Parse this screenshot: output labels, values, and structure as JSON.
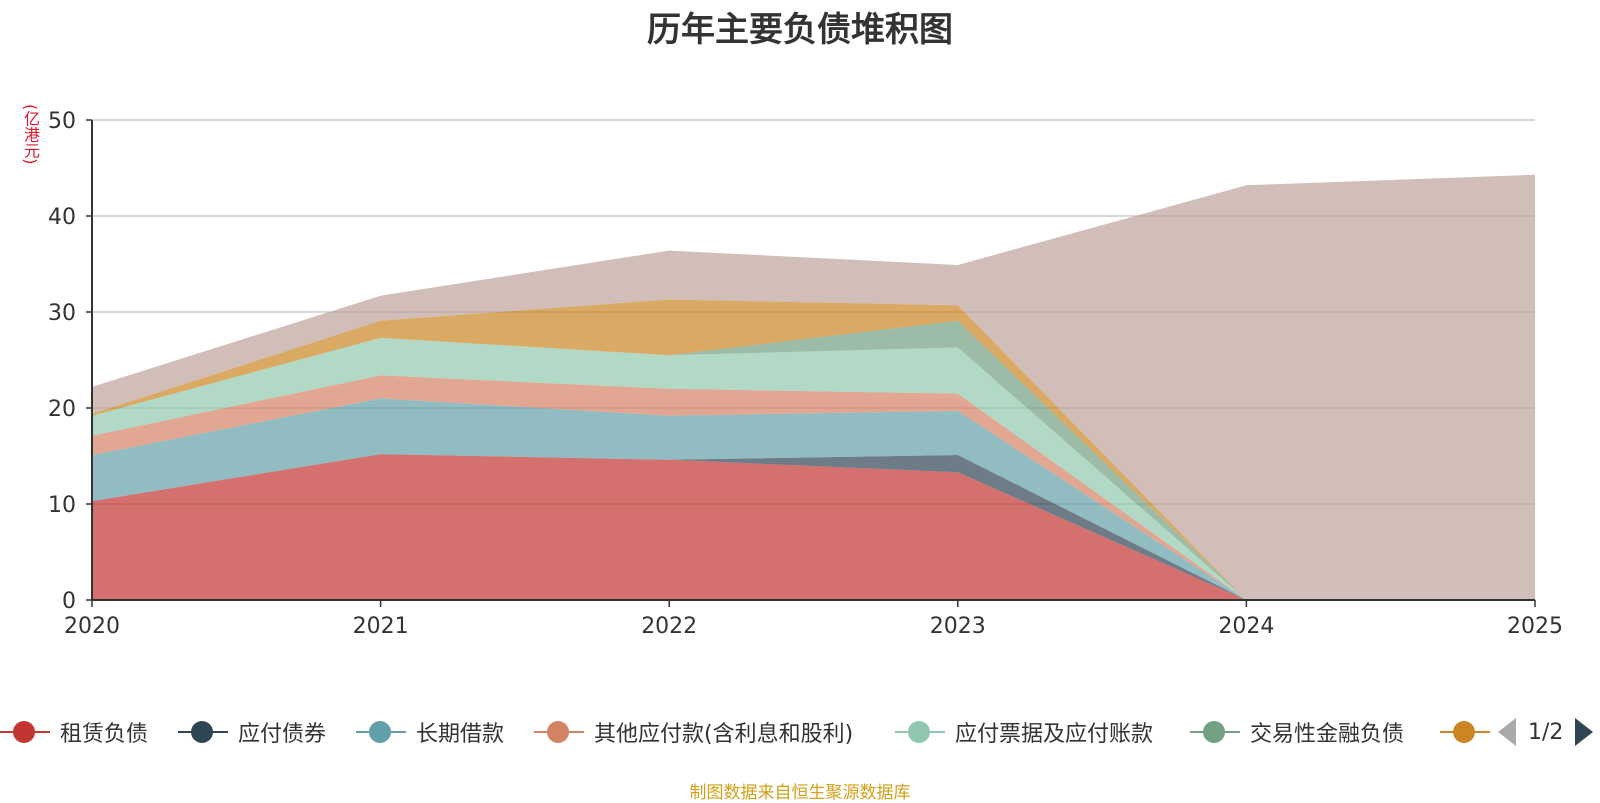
{
  "chart_data": {
    "type": "area",
    "stacked": true,
    "title": "历年主要负债堆积图",
    "ylabel": "(亿港元)",
    "xlabel": "",
    "x": [
      "2020",
      "2021",
      "2022",
      "2023",
      "2024",
      "2025"
    ],
    "ylim": [
      0,
      50
    ],
    "yticks": [
      0,
      10,
      20,
      30,
      40,
      50
    ],
    "grid": true,
    "series": [
      {
        "name": "租赁负债",
        "color": "#c23531",
        "values": [
          10.3,
          15.2,
          14.6,
          13.3,
          0,
          0
        ]
      },
      {
        "name": "应付债券",
        "color": "#2f4554",
        "values": [
          0,
          0,
          0,
          1.8,
          0,
          0
        ]
      },
      {
        "name": "长期借款",
        "color": "#61a0a8",
        "values": [
          4.8,
          5.8,
          4.6,
          4.6,
          0,
          0
        ]
      },
      {
        "name": "其他应付款(含利息和股利)",
        "color": "#d48265",
        "values": [
          2.0,
          2.4,
          2.8,
          1.8,
          0,
          0
        ]
      },
      {
        "name": "应付票据及应付账款",
        "color": "#91c7ae",
        "values": [
          2.1,
          3.9,
          3.5,
          4.8,
          0,
          0
        ]
      },
      {
        "name": "交易性金融负债",
        "color": "#749f83",
        "values": [
          0,
          0,
          0,
          2.8,
          0,
          0
        ]
      },
      {
        "name": "",
        "color": "#ca8622",
        "values": [
          0.2,
          1.8,
          5.8,
          1.6,
          0,
          0
        ]
      },
      {
        "name": "",
        "color": "#bda29a",
        "values": [
          2.8,
          2.6,
          5.1,
          4.2,
          43.2,
          44.3
        ]
      }
    ]
  },
  "legend": {
    "items": [
      {
        "name": "租赁负债",
        "color": "#c23531"
      },
      {
        "name": "应付债券",
        "color": "#2f4554"
      },
      {
        "name": "长期借款",
        "color": "#61a0a8"
      },
      {
        "name": "其他应付款(含利息和股利)",
        "color": "#d48265"
      },
      {
        "name": "应付票据及应付账款",
        "color": "#91c7ae"
      },
      {
        "name": "交易性金融负债",
        "color": "#749f83"
      },
      {
        "name": "",
        "color": "#ca8622"
      }
    ],
    "page": "1/2"
  },
  "footer": {
    "source": "制图数据来自恒生聚源数据库"
  }
}
